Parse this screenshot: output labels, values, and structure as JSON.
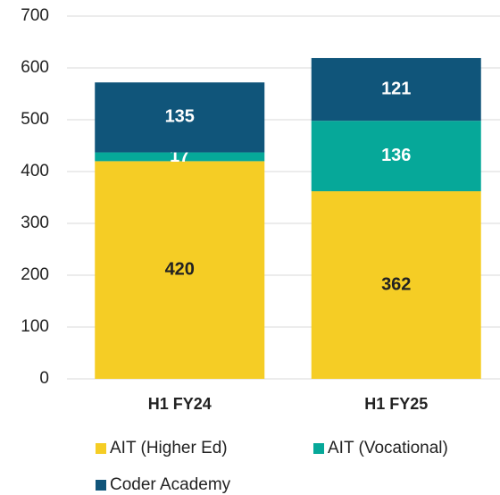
{
  "chart_data": {
    "type": "stacked_bar",
    "categories": [
      "H1 FY24",
      "H1 FY25"
    ],
    "series": [
      {
        "name": "AIT (Higher Ed)",
        "color": "#F5CD25",
        "label_color": "#222222",
        "values": [
          420,
          362
        ]
      },
      {
        "name": "AIT (Vocational)",
        "color": "#06A899",
        "label_color": "#ffffff",
        "values": [
          17,
          136
        ]
      },
      {
        "name": "Coder Academy",
        "color": "#10557A",
        "label_color": "#ffffff",
        "values": [
          135,
          121
        ]
      }
    ],
    "ylim": [
      0,
      700
    ],
    "yticks": [
      0,
      100,
      200,
      300,
      400,
      500,
      600,
      700
    ],
    "grid": true
  }
}
